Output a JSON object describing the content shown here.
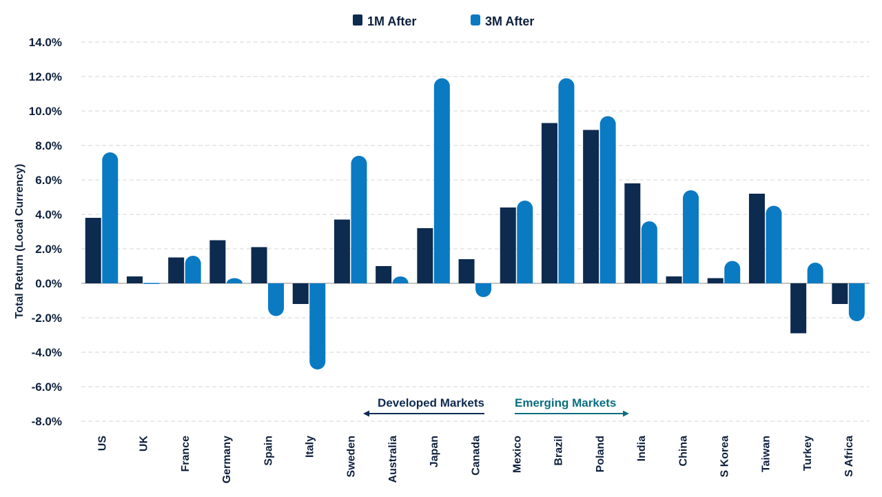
{
  "chart_data": {
    "type": "bar",
    "title": "",
    "xlabel": "",
    "ylabel": "Total Return (Local Currency)",
    "ylim": [
      -8,
      14
    ],
    "yticks": [
      14,
      12,
      10,
      8,
      6,
      4,
      2,
      0,
      -2,
      -4,
      -6,
      -8
    ],
    "ytick_labels": [
      "14.0%",
      "12.0%",
      "10.0%",
      "8.0%",
      "6.0%",
      "4.0%",
      "2.0%",
      "0.0%",
      "-2.0%",
      "-4.0%",
      "-6.0%",
      "-8.0%"
    ],
    "grid": true,
    "legend_position": "top-center",
    "categories": [
      "US",
      "UK",
      "France",
      "Germany",
      "Spain",
      "Italy",
      "Sweden",
      "Australia",
      "Japan",
      "Canada",
      "Mexico",
      "Brazil",
      "Poland",
      "India",
      "China",
      "S Korea",
      "Taiwan",
      "Turkey",
      "S Africa"
    ],
    "series": [
      {
        "name": "1M After",
        "color": "#0d2a4f",
        "values": [
          3.8,
          0.4,
          1.5,
          2.5,
          2.1,
          -1.2,
          3.7,
          1.0,
          3.2,
          1.4,
          4.4,
          9.3,
          8.9,
          5.8,
          0.4,
          0.3,
          5.2,
          -2.9,
          -1.2
        ]
      },
      {
        "name": "3M After",
        "color": "#0a7ac3",
        "values": [
          7.6,
          0.0,
          1.6,
          0.3,
          -1.9,
          -5.0,
          7.4,
          0.4,
          11.9,
          -0.8,
          4.8,
          11.9,
          9.7,
          3.6,
          5.4,
          1.3,
          4.5,
          1.2,
          -2.2
        ]
      }
    ],
    "annotations": {
      "developed": {
        "text": "Developed Markets",
        "color": "#0d2a4f"
      },
      "emerging": {
        "text": "Emerging Markets",
        "color": "#0a6e7e"
      }
    }
  }
}
